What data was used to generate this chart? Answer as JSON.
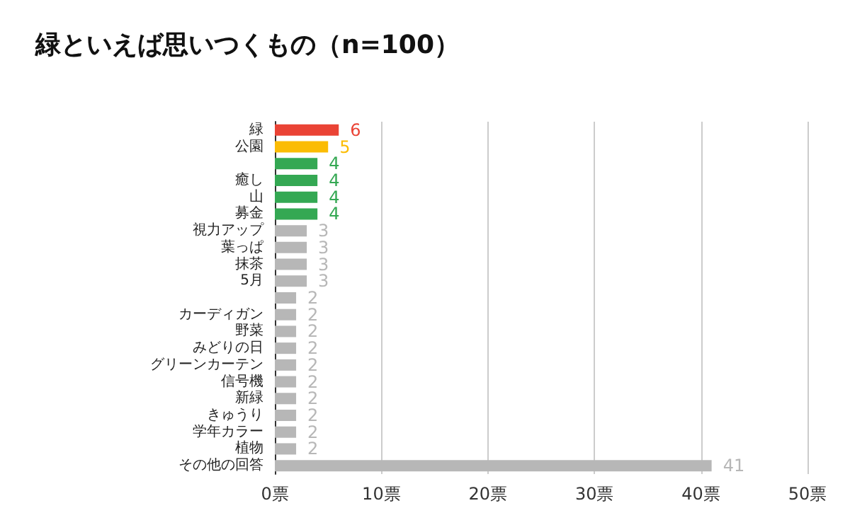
{
  "chart_data": {
    "type": "bar",
    "orientation": "horizontal",
    "title": "緑といえば思いつくもの（n=100）",
    "categories": [
      "緑",
      "公園",
      null,
      "癒し",
      "山",
      "募金",
      "視力アップ",
      "葉っぱ",
      "抹茶",
      "5月",
      null,
      "カーディガン",
      "野菜",
      "みどりの日",
      "グリーンカーテン",
      "信号機",
      "新緑",
      "きゅうり",
      "学年カラー",
      "植物",
      "その他の回答"
    ],
    "values": [
      6,
      5,
      4,
      4,
      4,
      4,
      3,
      3,
      3,
      3,
      2,
      2,
      2,
      2,
      2,
      2,
      2,
      2,
      2,
      2,
      41
    ],
    "colors": [
      "#ea4335",
      "#fbbc04",
      "#34a853",
      "#34a853",
      "#34a853",
      "#34a853",
      "#b7b7b7",
      "#b7b7b7",
      "#b7b7b7",
      "#b7b7b7",
      "#b7b7b7",
      "#b7b7b7",
      "#b7b7b7",
      "#b7b7b7",
      "#b7b7b7",
      "#b7b7b7",
      "#b7b7b7",
      "#b7b7b7",
      "#b7b7b7",
      "#b7b7b7",
      "#b7b7b7"
    ],
    "xlim": [
      0,
      50
    ],
    "xticks": [
      {
        "value": 0,
        "label": "0票"
      },
      {
        "value": 10,
        "label": "10票"
      },
      {
        "value": 20,
        "label": "20票"
      },
      {
        "value": 30,
        "label": "30票"
      },
      {
        "value": 40,
        "label": "40票"
      },
      {
        "value": 50,
        "label": "50票"
      }
    ],
    "grid": "x",
    "data_labels": true
  }
}
